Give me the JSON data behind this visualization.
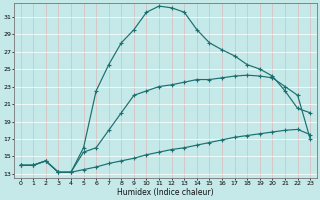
{
  "xlabel": "Humidex (Indice chaleur)",
  "bg_color": "#c5e8e8",
  "grid_color": "#d8c8c8",
  "line_color": "#1a7070",
  "xlim": [
    -0.5,
    23.5
  ],
  "ylim": [
    12.5,
    32.5
  ],
  "xtick_labels": [
    "0",
    "1",
    "2",
    "3",
    "4",
    "5",
    "6",
    "7",
    "8",
    "9",
    "10",
    "11",
    "12",
    "13",
    "14",
    "15",
    "16",
    "17",
    "18",
    "19",
    "20",
    "21",
    "22",
    "23"
  ],
  "xtick_vals": [
    0,
    1,
    2,
    3,
    4,
    5,
    6,
    7,
    8,
    9,
    10,
    11,
    12,
    13,
    14,
    15,
    16,
    17,
    18,
    19,
    20,
    21,
    22,
    23
  ],
  "ytick_vals": [
    13,
    15,
    17,
    19,
    21,
    23,
    25,
    27,
    29,
    31
  ],
  "curve1_x": [
    0,
    1,
    2,
    3,
    4,
    5,
    6,
    7,
    8,
    9,
    10,
    11,
    12,
    13,
    14,
    15,
    16,
    17,
    18,
    19,
    20,
    21,
    22,
    23
  ],
  "curve1_y": [
    14.0,
    14.0,
    14.5,
    13.2,
    13.2,
    16.0,
    22.5,
    25.5,
    28.0,
    29.5,
    31.5,
    32.2,
    32.0,
    31.5,
    29.5,
    28.0,
    27.2,
    26.5,
    25.5,
    25.0,
    24.2,
    22.5,
    20.5,
    20.0
  ],
  "curve2_x": [
    0,
    1,
    2,
    3,
    4,
    5,
    6,
    7,
    8,
    9,
    10,
    11,
    12,
    13,
    14,
    15,
    16,
    17,
    18,
    19,
    20,
    21,
    22,
    23
  ],
  "curve2_y": [
    14.0,
    14.0,
    14.5,
    13.2,
    13.2,
    15.5,
    16.0,
    18.0,
    20.0,
    22.0,
    22.5,
    23.0,
    23.2,
    23.5,
    23.8,
    23.8,
    24.0,
    24.2,
    24.3,
    24.2,
    24.0,
    23.0,
    22.0,
    17.0
  ],
  "curve3_x": [
    0,
    1,
    2,
    3,
    4,
    5,
    6,
    7,
    8,
    9,
    10,
    11,
    12,
    13,
    14,
    15,
    16,
    17,
    18,
    19,
    20,
    21,
    22,
    23
  ],
  "curve3_y": [
    14.0,
    14.0,
    14.5,
    13.2,
    13.2,
    13.5,
    13.8,
    14.2,
    14.5,
    14.8,
    15.2,
    15.5,
    15.8,
    16.0,
    16.3,
    16.6,
    16.9,
    17.2,
    17.4,
    17.6,
    17.8,
    18.0,
    18.1,
    17.5
  ]
}
